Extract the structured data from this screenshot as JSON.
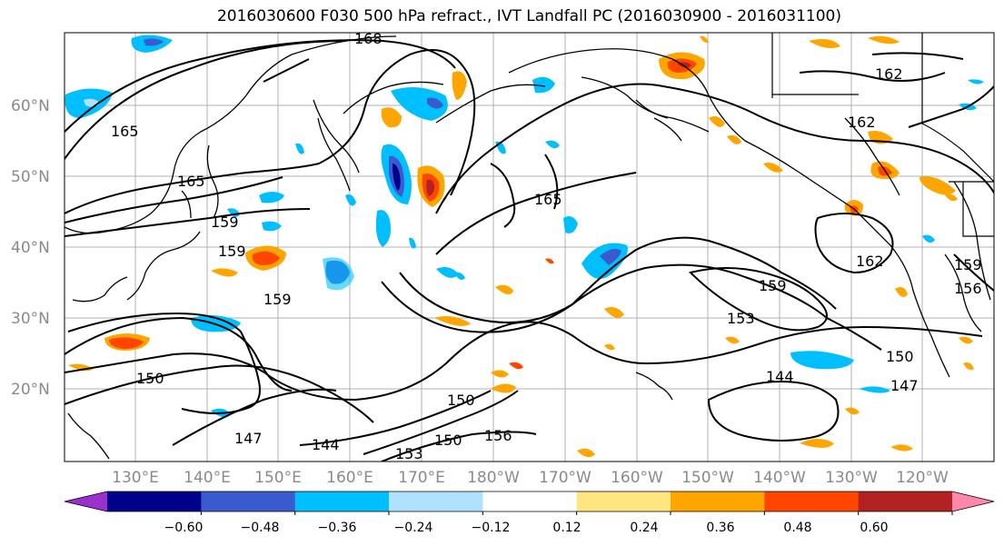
{
  "title": "2016030600 F030 500 hPa refract., IVT Landfall PC (2016030900 - 2016031100)",
  "map": {
    "lat_labels": [
      "60°N",
      "50°N",
      "40°N",
      "30°N",
      "20°N"
    ],
    "lon_labels": [
      "130°E",
      "140°E",
      "150°E",
      "160°E",
      "170°E",
      "180°W",
      "170°W",
      "160°W",
      "150°W",
      "140°W",
      "130°W",
      "120°W"
    ],
    "contour_labels": [
      "168",
      "165",
      "162",
      "162",
      "159",
      "159",
      "159",
      "159",
      "156",
      "153",
      "153",
      "150",
      "150",
      "150",
      "147",
      "147",
      "144",
      "144",
      "165",
      "165",
      "159",
      "150",
      "156",
      "162"
    ]
  },
  "colorbar": {
    "ticks": [
      "−0.60",
      "−0.48",
      "−0.36",
      "−0.24",
      "−0.12",
      "0.12",
      "0.24",
      "0.36",
      "0.48",
      "0.60"
    ],
    "colors": [
      "#9932cc",
      "#00008b",
      "#3a5bcf",
      "#00bfff",
      "#b0e2ff",
      "#ffffff",
      "#ffe680",
      "#ffa500",
      "#ff4500",
      "#b22222",
      "#ff88aa"
    ]
  }
}
